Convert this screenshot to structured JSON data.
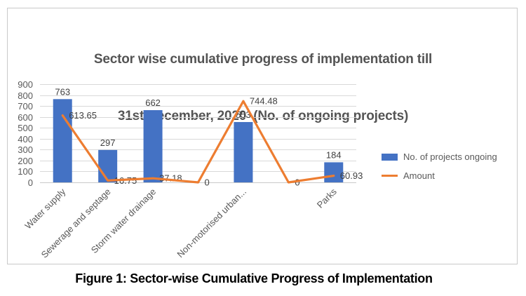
{
  "figure": {
    "title_line1": "Sector wise cumulative progress of implementation till",
    "title_line2": "31st December, 2020  (No. of ongoing projects)",
    "caption": "Figure 1: Sector-wise Cumulative Progress of Implementation"
  },
  "legend": {
    "items": [
      {
        "label": "No. of projects ongoing",
        "type": "bar",
        "color": "#4472C4"
      },
      {
        "label": "Amount",
        "type": "line",
        "color": "#ED7D31"
      }
    ]
  },
  "chart_data": {
    "type": "bar+line",
    "title": "Sector wise cumulative progress of implementation till 31st December, 2020 (No. of ongoing projects)",
    "categories": [
      "Water supply",
      "Sewerage and septage",
      "Storm water drainage",
      "",
      "Non-motorised urban...",
      "",
      "Parks"
    ],
    "series": [
      {
        "name": "No. of projects ongoing",
        "type": "bar",
        "color": "#4472C4",
        "values": [
          763,
          297,
          662,
          null,
          553,
          null,
          184
        ],
        "labels": [
          "763",
          "297",
          "662",
          "",
          "553",
          "",
          "184"
        ]
      },
      {
        "name": "Amount",
        "type": "line",
        "color": "#ED7D31",
        "values": [
          613.65,
          16.75,
          37.18,
          0,
          744.48,
          0,
          60.93
        ],
        "labels": [
          "613.65",
          "16.75",
          "37.18",
          "0",
          "744.48",
          "0",
          "60.93"
        ]
      }
    ],
    "ylim": [
      0,
      900
    ],
    "yticks": [
      0,
      100,
      200,
      300,
      400,
      500,
      600,
      700,
      800,
      900
    ],
    "grid": true,
    "legend_position": "right",
    "xlabel": "",
    "ylabel": ""
  },
  "colors": {
    "bar": "#4472C4",
    "line": "#ED7D31",
    "grid": "#D9D9D9",
    "axis_text": "#595959",
    "data_label_text": "#404040",
    "title_text": "#545454",
    "frame_border": "#C9C9C9"
  }
}
